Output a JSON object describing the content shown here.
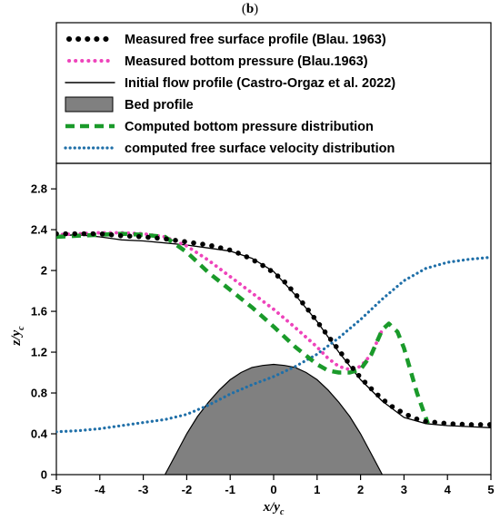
{
  "panel_label_open": "(",
  "panel_label_letter": "b",
  "panel_label_close": ")",
  "chart_data": {
    "type": "line",
    "title": "",
    "xlabel_main": "x/y",
    "xlabel_sub": "c",
    "ylabel_main": "z/y",
    "ylabel_sub": "c",
    "xlim": [
      -5,
      5
    ],
    "ylim": [
      0,
      3.05
    ],
    "xticks": [
      -5,
      -4,
      -3,
      -2,
      -1,
      0,
      1,
      2,
      3,
      4,
      5
    ],
    "xtick_labels": [
      "-5",
      "-4",
      "-3",
      "-2",
      "-1",
      "0",
      "1",
      "2",
      "3",
      "4",
      "5"
    ],
    "yticks": [
      0,
      0.4,
      0.8,
      1.2,
      1.6,
      2,
      2.4,
      2.8
    ],
    "ytick_labels": [
      "0",
      "0.4",
      "0.8",
      "1.2",
      "1.6",
      "2",
      "2.4",
      "2.8"
    ],
    "grid": false,
    "legend_position": "above plot",
    "series": [
      {
        "name": "Measured free surface profile (Blau. 1963)",
        "style": "large-dots",
        "color": "#000000",
        "x": [
          -5,
          -4.5,
          -4,
          -3.5,
          -3,
          -2.5,
          -2,
          -1.5,
          -1,
          -0.75,
          -0.5,
          -0.25,
          0,
          0.25,
          0.5,
          0.75,
          1,
          1.25,
          1.5,
          1.75,
          2,
          2.25,
          2.5,
          2.75,
          3,
          3.25,
          3.5,
          3.75,
          4,
          4.5,
          5
        ],
        "y": [
          2.36,
          2.36,
          2.36,
          2.34,
          2.33,
          2.31,
          2.28,
          2.25,
          2.2,
          2.16,
          2.11,
          2.05,
          1.98,
          1.89,
          1.77,
          1.64,
          1.5,
          1.36,
          1.22,
          1.08,
          0.95,
          0.84,
          0.74,
          0.66,
          0.6,
          0.55,
          0.52,
          0.51,
          0.5,
          0.49,
          0.49
        ]
      },
      {
        "name": "Measured bottom pressure (Blau.1963)",
        "style": "dotted",
        "color": "#ee44bb",
        "x": [
          -5,
          -4.5,
          -4,
          -3.5,
          -3,
          -2.5,
          -2,
          -1.5,
          -1,
          -0.5,
          0,
          0.5,
          1,
          1.25,
          1.5,
          1.75,
          2,
          2.25,
          2.5
        ],
        "y": [
          2.35,
          2.36,
          2.37,
          2.37,
          2.36,
          2.33,
          2.24,
          2.1,
          1.94,
          1.78,
          1.62,
          1.44,
          1.25,
          1.14,
          1.06,
          1.03,
          1.06,
          1.18,
          1.42
        ]
      },
      {
        "name": "Initial flow profile (Castro-Orgaz et al. 2022)",
        "style": "solid",
        "color": "#000000",
        "x": [
          -5,
          -4.5,
          -4,
          -3.5,
          -3,
          -2.5,
          -2,
          -1.5,
          -1,
          -0.5,
          0,
          0.5,
          1,
          1.5,
          2,
          2.5,
          3,
          3.5,
          4,
          4.5,
          5
        ],
        "y": [
          2.34,
          2.35,
          2.33,
          2.3,
          2.29,
          2.27,
          2.25,
          2.22,
          2.19,
          2.12,
          1.99,
          1.76,
          1.5,
          1.2,
          0.93,
          0.72,
          0.56,
          0.5,
          0.48,
          0.47,
          0.46
        ]
      },
      {
        "name": "Bed profile",
        "style": "filled",
        "color": "#808080",
        "x": [
          -2.5,
          -2.25,
          -2,
          -1.75,
          -1.5,
          -1.25,
          -1,
          -0.75,
          -0.5,
          -0.25,
          0,
          0.25,
          0.5,
          0.75,
          1,
          1.25,
          1.5,
          1.75,
          2,
          2.25,
          2.5
        ],
        "y": [
          0,
          0.2,
          0.4,
          0.57,
          0.71,
          0.83,
          0.93,
          1,
          1.05,
          1.07,
          1.08,
          1.07,
          1.05,
          1,
          0.93,
          0.83,
          0.71,
          0.57,
          0.4,
          0.2,
          0
        ]
      },
      {
        "name": "Computed bottom pressure distribution",
        "style": "dashed",
        "color": "#1a9a2a",
        "x": [
          -5,
          -4.5,
          -4,
          -3.5,
          -3,
          -2.5,
          -2,
          -1.5,
          -1,
          -0.5,
          0,
          0.5,
          1,
          1.25,
          1.5,
          1.75,
          2,
          2.25,
          2.5,
          2.65,
          2.85,
          3,
          3.15,
          3.3,
          3.45,
          3.55
        ],
        "y": [
          2.33,
          2.34,
          2.35,
          2.36,
          2.35,
          2.33,
          2.18,
          1.98,
          1.81,
          1.64,
          1.45,
          1.25,
          1.08,
          1.02,
          1,
          1,
          1.03,
          1.18,
          1.42,
          1.48,
          1.4,
          1.24,
          1.02,
          0.8,
          0.62,
          0.5
        ]
      },
      {
        "name": "computed free surface velocity distribution",
        "style": "small-dots",
        "color": "#1f6fa8",
        "x": [
          -5,
          -4.5,
          -4,
          -3.5,
          -3,
          -2.5,
          -2,
          -1.5,
          -1,
          -0.5,
          0,
          0.5,
          1,
          1.5,
          2,
          2.5,
          3,
          3.5,
          4,
          4.5,
          5
        ],
        "y": [
          0.42,
          0.43,
          0.45,
          0.48,
          0.51,
          0.54,
          0.59,
          0.68,
          0.79,
          0.88,
          0.96,
          1.06,
          1.18,
          1.34,
          1.52,
          1.72,
          1.9,
          2.02,
          2.08,
          2.11,
          2.13
        ]
      }
    ]
  }
}
